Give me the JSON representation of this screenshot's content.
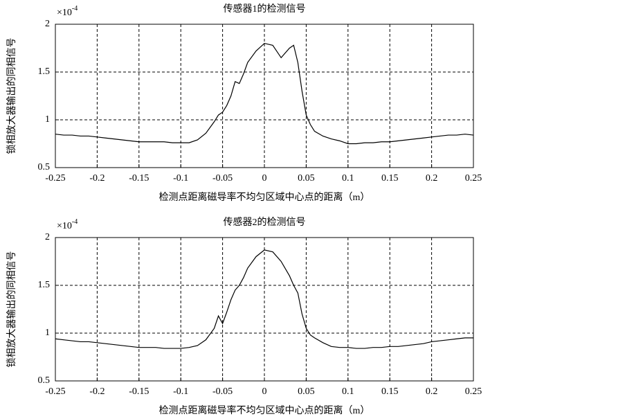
{
  "chart_data": [
    {
      "type": "line",
      "title": "传感器1的检测信号",
      "xlabel": "检测点距离磁导率不均匀区域中心点的距离（m）",
      "ylabel": "锁相放大器输出的同相信号",
      "y_multiplier": {
        "base": "×10",
        "exponent": "-4"
      },
      "x": [
        -0.25,
        -0.24,
        -0.23,
        -0.22,
        -0.21,
        -0.2,
        -0.19,
        -0.18,
        -0.17,
        -0.16,
        -0.15,
        -0.14,
        -0.13,
        -0.12,
        -0.11,
        -0.1,
        -0.09,
        -0.08,
        -0.07,
        -0.06,
        -0.055,
        -0.05,
        -0.045,
        -0.04,
        -0.035,
        -0.03,
        -0.025,
        -0.02,
        -0.01,
        0,
        0.01,
        0.02,
        0.03,
        0.035,
        0.04,
        0.045,
        0.05,
        0.055,
        0.06,
        0.07,
        0.08,
        0.09,
        0.1,
        0.11,
        0.12,
        0.13,
        0.14,
        0.15,
        0.16,
        0.17,
        0.18,
        0.19,
        0.2,
        0.21,
        0.22,
        0.23,
        0.24,
        0.25
      ],
      "series": [
        {
          "color": "#000000",
          "values": [
            0.85,
            0.84,
            0.84,
            0.83,
            0.83,
            0.82,
            0.81,
            0.8,
            0.79,
            0.78,
            0.77,
            0.77,
            0.77,
            0.77,
            0.76,
            0.76,
            0.76,
            0.79,
            0.86,
            0.98,
            1.05,
            1.08,
            1.15,
            1.25,
            1.4,
            1.38,
            1.48,
            1.6,
            1.72,
            1.8,
            1.78,
            1.65,
            1.75,
            1.78,
            1.6,
            1.3,
            1.05,
            0.95,
            0.88,
            0.83,
            0.8,
            0.78,
            0.75,
            0.75,
            0.76,
            0.76,
            0.77,
            0.77,
            0.78,
            0.79,
            0.8,
            0.81,
            0.82,
            0.83,
            0.84,
            0.84,
            0.85,
            0.84
          ]
        }
      ],
      "xlim": [
        -0.25,
        0.25
      ],
      "xticks": [
        -0.25,
        -0.2,
        -0.15,
        -0.1,
        -0.05,
        0,
        0.05,
        0.1,
        0.15,
        0.2,
        0.25
      ],
      "ylim": [
        0.5,
        2
      ],
      "yticks": [
        0.5,
        1,
        1.5,
        2
      ],
      "grid": true
    },
    {
      "type": "line",
      "title": "传感器2的检测信号",
      "xlabel": "检测点距离磁导率不均匀区域中心点的距离（m）",
      "ylabel": "锁相放大器输出的同相信号",
      "y_multiplier": {
        "base": "×10",
        "exponent": "-4"
      },
      "x": [
        -0.25,
        -0.24,
        -0.23,
        -0.22,
        -0.21,
        -0.2,
        -0.19,
        -0.18,
        -0.17,
        -0.16,
        -0.15,
        -0.14,
        -0.13,
        -0.12,
        -0.11,
        -0.1,
        -0.09,
        -0.08,
        -0.07,
        -0.06,
        -0.055,
        -0.05,
        -0.045,
        -0.04,
        -0.035,
        -0.03,
        -0.025,
        -0.02,
        -0.01,
        0,
        0.01,
        0.02,
        0.03,
        0.035,
        0.04,
        0.045,
        0.05,
        0.055,
        0.06,
        0.07,
        0.08,
        0.09,
        0.1,
        0.11,
        0.12,
        0.13,
        0.14,
        0.15,
        0.16,
        0.17,
        0.18,
        0.19,
        0.2,
        0.21,
        0.22,
        0.23,
        0.24,
        0.25
      ],
      "series": [
        {
          "color": "#000000",
          "values": [
            0.94,
            0.93,
            0.92,
            0.91,
            0.91,
            0.9,
            0.89,
            0.88,
            0.87,
            0.86,
            0.85,
            0.85,
            0.85,
            0.84,
            0.84,
            0.84,
            0.85,
            0.87,
            0.93,
            1.05,
            1.18,
            1.1,
            1.22,
            1.35,
            1.45,
            1.5,
            1.58,
            1.68,
            1.8,
            1.87,
            1.85,
            1.75,
            1.6,
            1.5,
            1.42,
            1.2,
            1.05,
            0.98,
            0.95,
            0.9,
            0.86,
            0.85,
            0.85,
            0.84,
            0.84,
            0.85,
            0.85,
            0.86,
            0.86,
            0.87,
            0.88,
            0.89,
            0.91,
            0.92,
            0.93,
            0.94,
            0.95,
            0.95
          ]
        }
      ],
      "xlim": [
        -0.25,
        0.25
      ],
      "xticks": [
        -0.25,
        -0.2,
        -0.15,
        -0.1,
        -0.05,
        0,
        0.05,
        0.1,
        0.15,
        0.2,
        0.25
      ],
      "ylim": [
        0.5,
        2
      ],
      "yticks": [
        0.5,
        1,
        1.5,
        2
      ],
      "grid": true
    }
  ]
}
